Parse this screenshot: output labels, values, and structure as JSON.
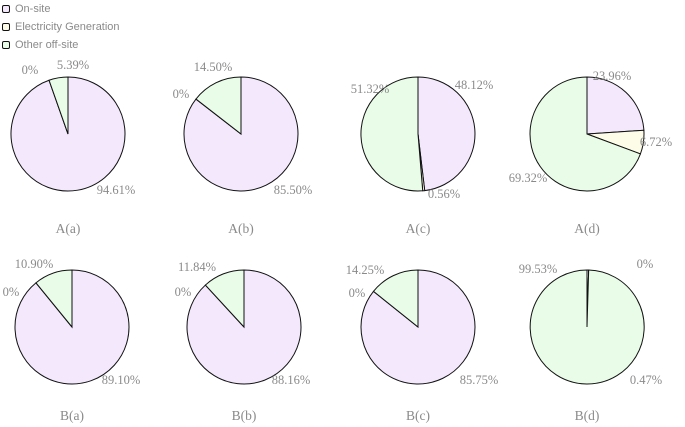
{
  "legend": {
    "items": [
      {
        "label": "On-site",
        "color": "#f3e8fc"
      },
      {
        "label": "Electricity Generation",
        "color": "#fdfce8"
      },
      {
        "label": "Other off-site",
        "color": "#e8fce8"
      }
    ]
  },
  "chart_data": [
    {
      "type": "pie",
      "title": "A(a)",
      "labels": [
        "On-site",
        "Electricity Generation",
        "Other off-site"
      ],
      "values": [
        94.61,
        0,
        5.39
      ],
      "value_labels": [
        "94.61%",
        "0%",
        "5.39%"
      ]
    },
    {
      "type": "pie",
      "title": "A(b)",
      "labels": [
        "On-site",
        "Electricity Generation",
        "Other off-site"
      ],
      "values": [
        85.5,
        0,
        14.5
      ],
      "value_labels": [
        "85.50%",
        "0%",
        "14.50%"
      ]
    },
    {
      "type": "pie",
      "title": "A(c)",
      "labels": [
        "On-site",
        "Electricity Generation",
        "Other off-site"
      ],
      "values": [
        48.12,
        0.56,
        51.32
      ],
      "value_labels": [
        "48.12%",
        "0.56%",
        "51.32%"
      ]
    },
    {
      "type": "pie",
      "title": "A(d)",
      "labels": [
        "On-site",
        "Electricity Generation",
        "Other off-site"
      ],
      "values": [
        23.96,
        6.72,
        69.32
      ],
      "value_labels": [
        "23.96%",
        "6.72%",
        "69.32%"
      ]
    },
    {
      "type": "pie",
      "title": "B(a)",
      "labels": [
        "On-site",
        "Electricity Generation",
        "Other off-site"
      ],
      "values": [
        89.1,
        0,
        10.9
      ],
      "value_labels": [
        "89.10%",
        "0%",
        "10.90%"
      ]
    },
    {
      "type": "pie",
      "title": "B(b)",
      "labels": [
        "On-site",
        "Electricity Generation",
        "Other off-site"
      ],
      "values": [
        88.16,
        0,
        11.84
      ],
      "value_labels": [
        "88.16%",
        "0%",
        "11.84%"
      ]
    },
    {
      "type": "pie",
      "title": "B(c)",
      "labels": [
        "On-site",
        "Electricity Generation",
        "Other off-site"
      ],
      "values": [
        85.75,
        0,
        14.25
      ],
      "value_labels": [
        "85.75%",
        "0%",
        "14.25%"
      ]
    },
    {
      "type": "pie",
      "title": "B(d)",
      "labels": [
        "On-site",
        "Electricity Generation",
        "Other off-site"
      ],
      "values": [
        0.47,
        0,
        99.53
      ],
      "value_labels": [
        "0.47%",
        "0%",
        "99.53%"
      ]
    }
  ]
}
